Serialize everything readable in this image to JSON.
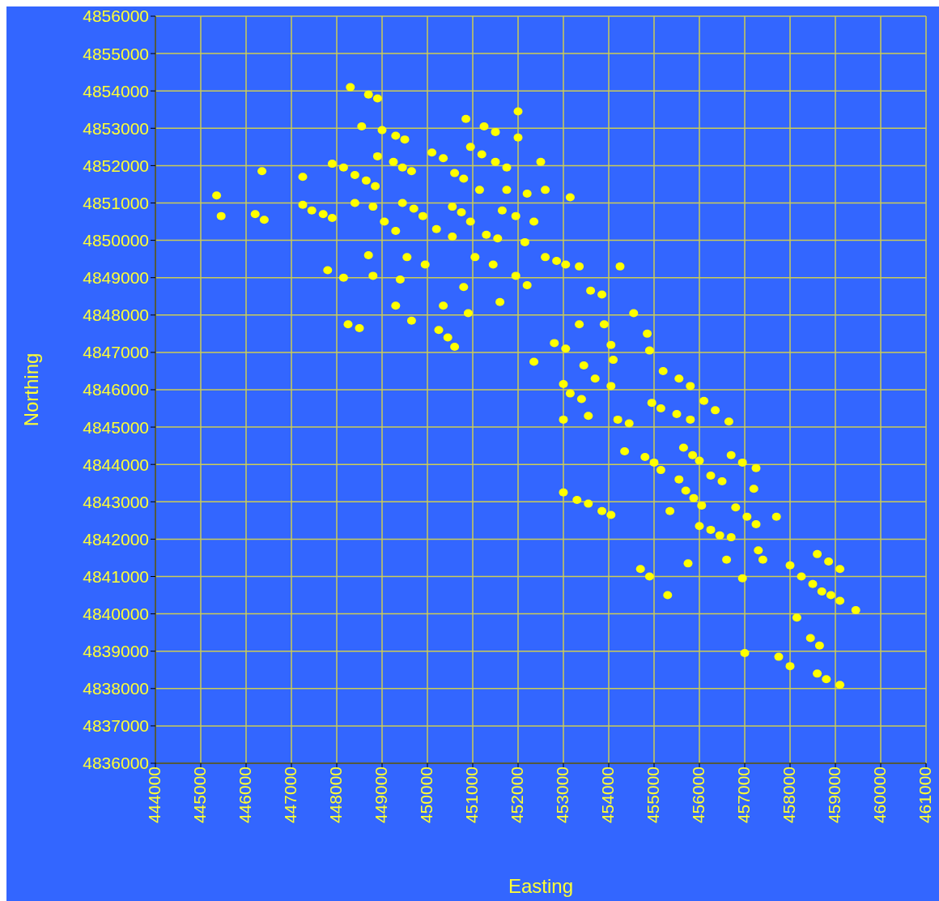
{
  "chart_data": {
    "type": "scatter",
    "xlabel": "Easting",
    "ylabel": "Northing",
    "color": "#ffff00",
    "marker": "circle",
    "grid": true,
    "xlim": [
      444000,
      461000
    ],
    "xticks": [
      444000,
      445000,
      446000,
      447000,
      448000,
      449000,
      450000,
      451000,
      452000,
      453000,
      454000,
      455000,
      456000,
      457000,
      458000,
      459000,
      460000,
      461000
    ],
    "ylim": [
      4836000,
      4856000
    ],
    "yticks": [
      4836000,
      4837000,
      4838000,
      4839000,
      4840000,
      4841000,
      4842000,
      4843000,
      4844000,
      4845000,
      4846000,
      4847000,
      4848000,
      4849000,
      4850000,
      4851000,
      4852000,
      4853000,
      4854000,
      4855000,
      4856000
    ],
    "x": [
      445350,
      445450,
      446350,
      446200,
      446400,
      447250,
      447250,
      447450,
      447700,
      447900,
      447900,
      448150,
      448400,
      448650,
      448850,
      448400,
      448800,
      448300,
      448700,
      448900,
      448550,
      449000,
      449300,
      449500,
      448900,
      449250,
      449450,
      449650,
      449450,
      449700,
      449900,
      449050,
      449300,
      447800,
      448150,
      448700,
      448800,
      449550,
      449400,
      449300,
      448250,
      448500,
      449650,
      449950,
      450100,
      450350,
      450850,
      450950,
      451200,
      451250,
      451500,
      452000,
      452000,
      452500,
      450600,
      450800,
      451150,
      451500,
      451750,
      451750,
      452200,
      452600,
      453150,
      450200,
      450550,
      450750,
      450950,
      451650,
      451950,
      452350,
      450550,
      451300,
      451550,
      452150,
      451050,
      451450,
      452600,
      452850,
      453050,
      453350,
      454250,
      451950,
      452200,
      450800,
      450350,
      450900,
      451600,
      450250,
      450450,
      450600,
      453600,
      453850,
      454550,
      453350,
      453900,
      452800,
      453050,
      454050,
      454850,
      454900,
      452350,
      453450,
      454100,
      453000,
      453700,
      454050,
      455200,
      455550,
      455800,
      453150,
      453400,
      453550,
      453000,
      454200,
      454450,
      454950,
      455150,
      455500,
      455800,
      456100,
      456350,
      456650,
      454350,
      454800,
      455000,
      455150,
      455650,
      455850,
      456000,
      456700,
      456950,
      457250,
      455550,
      455700,
      455875,
      456050,
      456250,
      456500,
      457200,
      453000,
      453300,
      453550,
      453850,
      454050,
      455350,
      456800,
      457050,
      457250,
      457700,
      456000,
      456250,
      456450,
      456700,
      457300,
      457400,
      456600,
      455750,
      454700,
      454900,
      456950,
      455300,
      458000,
      458600,
      458850,
      459100,
      458250,
      458500,
      458700,
      458900,
      459100,
      459450,
      458150,
      458450,
      458650,
      457000,
      457750,
      458000,
      458600,
      458800,
      459100
    ],
    "values": [
      4851200,
      4850650,
      4851850,
      4850700,
      4850550,
      4851700,
      4850950,
      4850800,
      4850700,
      4850600,
      4852050,
      4851950,
      4851750,
      4851600,
      4851450,
      4851000,
      4850900,
      4854100,
      4853900,
      4853800,
      4853050,
      4852950,
      4852800,
      4852700,
      4852250,
      4852100,
      4851950,
      4851850,
      4851000,
      4850850,
      4850650,
      4850500,
      4850250,
      4849200,
      4849000,
      4849600,
      4849050,
      4849550,
      4848950,
      4848250,
      4847750,
      4847650,
      4847850,
      4849350,
      4852350,
      4852200,
      4853250,
      4852500,
      4852300,
      4853050,
      4852900,
      4853450,
      4852750,
      4852100,
      4851800,
      4851650,
      4851350,
      4852100,
      4851950,
      4851350,
      4851250,
      4851350,
      4851150,
      4850300,
      4850900,
      4850750,
      4850500,
      4850800,
      4850650,
      4850500,
      4850100,
      4850150,
      4850050,
      4849950,
      4849550,
      4849350,
      4849550,
      4849450,
      4849350,
      4849300,
      4849300,
      4849050,
      4848800,
      4848750,
      4848250,
      4848050,
      4848350,
      4847600,
      4847400,
      4847150,
      4848650,
      4848550,
      4848050,
      4847750,
      4847750,
      4847250,
      4847100,
      4847200,
      4847500,
      4847050,
      4846750,
      4846650,
      4846800,
      4846150,
      4846300,
      4846100,
      4846500,
      4846300,
      4846100,
      4845900,
      4845750,
      4845300,
      4845200,
      4845200,
      4845100,
      4845650,
      4845500,
      4845350,
      4845200,
      4845700,
      4845450,
      4845150,
      4844350,
      4844200,
      4844050,
      4843850,
      4844450,
      4844250,
      4844100,
      4844250,
      4844050,
      4843900,
      4843600,
      4843300,
      4843100,
      4842900,
      4843700,
      4843550,
      4843350,
      4843250,
      4843050,
      4842950,
      4842750,
      4842650,
      4842750,
      4842850,
      4842600,
      4842400,
      4842600,
      4842350,
      4842250,
      4842100,
      4842050,
      4841700,
      4841450,
      4841450,
      4841350,
      4841200,
      4841000,
      4840950,
      4840500,
      4841300,
      4841600,
      4841400,
      4841200,
      4841000,
      4840800,
      4840600,
      4840500,
      4840350,
      4840100,
      4839900,
      4839350,
      4839150,
      4838950,
      4838850,
      4838600,
      4838400,
      4838250,
      4838100
    ]
  }
}
